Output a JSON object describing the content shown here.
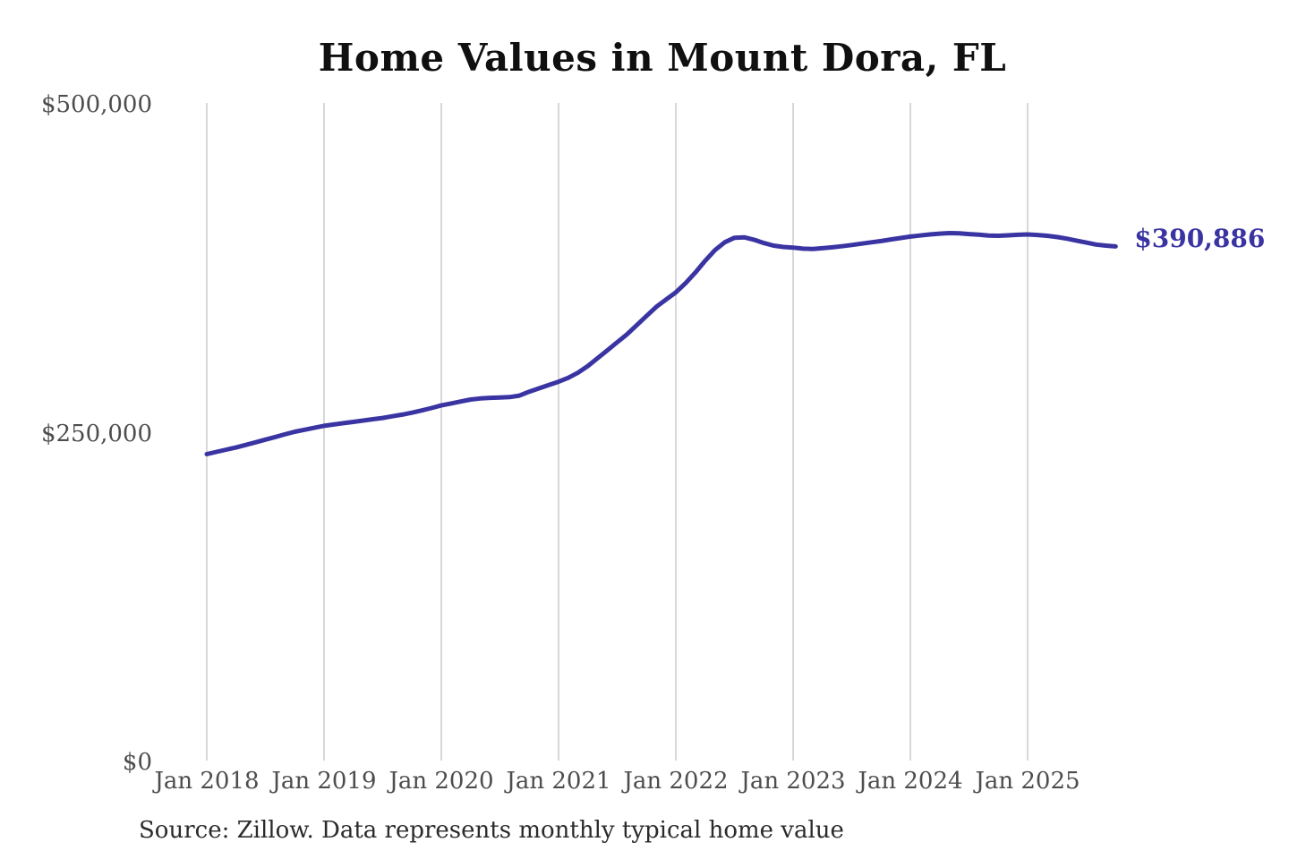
{
  "page": {
    "background_color": "#ffffff"
  },
  "chart_data": {
    "type": "line",
    "title": "Home Values in Mount Dora, FL",
    "source_note": "Source: Zillow. Data represents monthly typical home value",
    "end_label": "$390,886",
    "end_value": 390886,
    "line_color": "#3a34a3",
    "grid_color": "#cccccc",
    "tick_text_color": "#4d4d4d",
    "title_color": "#101010",
    "legend": "none",
    "grid": "vertical-only",
    "ylim": [
      0,
      500000
    ],
    "y_ticks": [
      {
        "label": "$500,000",
        "value": 500000
      },
      {
        "label": "$250,000",
        "value": 250000
      },
      {
        "label": "$0",
        "value": 0
      }
    ],
    "x_tick_labels": [
      "Jan 2018",
      "Jan 2019",
      "Jan 2020",
      "Jan 2021",
      "Jan 2022",
      "Jan 2023",
      "Jan 2024",
      "Jan 2025"
    ],
    "series": [
      {
        "name": "Monthly typical home value",
        "x": [
          "2018-01",
          "2018-02",
          "2018-03",
          "2018-04",
          "2018-05",
          "2018-06",
          "2018-07",
          "2018-08",
          "2018-09",
          "2018-10",
          "2018-11",
          "2018-12",
          "2019-01",
          "2019-02",
          "2019-03",
          "2019-04",
          "2019-05",
          "2019-06",
          "2019-07",
          "2019-08",
          "2019-09",
          "2019-10",
          "2019-11",
          "2019-12",
          "2020-01",
          "2020-02",
          "2020-03",
          "2020-04",
          "2020-05",
          "2020-06",
          "2020-07",
          "2020-08",
          "2020-09",
          "2020-10",
          "2020-11",
          "2020-12",
          "2021-01",
          "2021-02",
          "2021-03",
          "2021-04",
          "2021-05",
          "2021-06",
          "2021-07",
          "2021-08",
          "2021-09",
          "2021-10",
          "2021-11",
          "2021-12",
          "2022-01",
          "2022-02",
          "2022-03",
          "2022-04",
          "2022-05",
          "2022-06",
          "2022-07",
          "2022-08",
          "2022-09",
          "2022-10",
          "2022-11",
          "2022-12",
          "2023-01",
          "2023-02",
          "2023-03",
          "2023-04",
          "2023-05",
          "2023-06",
          "2023-07",
          "2023-08",
          "2023-09",
          "2023-10",
          "2023-11",
          "2023-12",
          "2024-01",
          "2024-02",
          "2024-03",
          "2024-04",
          "2024-05",
          "2024-06",
          "2024-07",
          "2024-08",
          "2024-09",
          "2024-10",
          "2024-11",
          "2024-12",
          "2025-01",
          "2025-02",
          "2025-03",
          "2025-04",
          "2025-05",
          "2025-06",
          "2025-07",
          "2025-08",
          "2025-09",
          "2025-10"
        ],
        "values": [
          233000,
          234700,
          236400,
          238000,
          240000,
          242000,
          244000,
          246000,
          248000,
          250000,
          251500,
          253000,
          254500,
          255500,
          256500,
          257500,
          258500,
          259500,
          260500,
          261800,
          263000,
          264500,
          266200,
          268000,
          270000,
          271500,
          273000,
          274500,
          275300,
          275800,
          276000,
          276300,
          277500,
          280500,
          283000,
          285500,
          288000,
          291000,
          295000,
          300000,
          306000,
          312000,
          318000,
          324000,
          331000,
          338000,
          345000,
          350500,
          356000,
          363000,
          371000,
          380000,
          388000,
          394000,
          397500,
          397800,
          396000,
          393500,
          391500,
          390500,
          390000,
          389200,
          389000,
          389500,
          390200,
          391000,
          392000,
          393000,
          394000,
          395000,
          396200,
          397300,
          398400,
          399200,
          400000,
          400600,
          401000,
          400800,
          400300,
          399800,
          399200,
          399000,
          399300,
          399700,
          400000,
          399600,
          399000,
          398000,
          396800,
          395300,
          393800,
          392300,
          391500,
          390886
        ]
      }
    ]
  }
}
